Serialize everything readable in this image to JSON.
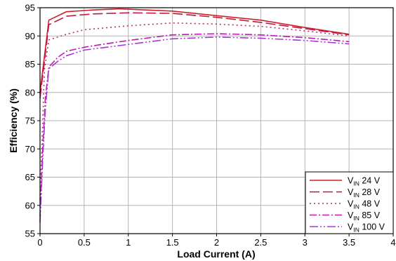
{
  "chart_data": {
    "type": "line",
    "xlabel": "Load Current (A)",
    "ylabel": "Efficiency (%)",
    "xlim": [
      0,
      4
    ],
    "ylim": [
      55,
      95
    ],
    "xticks": [
      0,
      0.5,
      1,
      1.5,
      2,
      2.5,
      3,
      3.5,
      4
    ],
    "xtick_labels": [
      "0",
      "0.5",
      "1",
      "1.5",
      "2",
      "2.5",
      "3",
      "3.5",
      "4"
    ],
    "yticks": [
      55,
      60,
      65,
      70,
      75,
      80,
      85,
      90,
      95
    ],
    "ytick_labels": [
      "55",
      "60",
      "65",
      "70",
      "75",
      "80",
      "85",
      "90",
      "95"
    ],
    "grid": true,
    "legend_position": "bottom-right",
    "series": [
      {
        "name": "V_IN 24 V",
        "label_main": "V",
        "label_sub": "IN",
        "label_rest": " 24 V",
        "color": "#d01f2b",
        "style": "solid",
        "x": [
          0,
          0.1,
          0.3,
          0.6,
          0.9,
          1.2,
          1.5,
          2.0,
          2.5,
          3.0,
          3.5
        ],
        "y": [
          80,
          92.8,
          94.3,
          94.6,
          94.8,
          94.6,
          94.4,
          93.6,
          92.8,
          91.5,
          90.3
        ]
      },
      {
        "name": "V_IN 28 V",
        "label_main": "V",
        "label_sub": "IN",
        "label_rest": " 28 V",
        "color": "#c01840",
        "style": "longdash",
        "x": [
          0,
          0.1,
          0.3,
          0.6,
          1.0,
          1.5,
          2.0,
          2.5,
          3.0,
          3.5
        ],
        "y": [
          79,
          92.0,
          93.5,
          93.9,
          94.1,
          94.0,
          93.3,
          92.4,
          91.3,
          90.2
        ]
      },
      {
        "name": "V_IN 48 V",
        "label_main": "V",
        "label_sub": "IN",
        "label_rest": " 48 V",
        "color": "#c02a78",
        "style": "dotted",
        "x": [
          0,
          0.05,
          0.1,
          0.3,
          0.5,
          1.0,
          1.5,
          2.0,
          2.5,
          3.0,
          3.5
        ],
        "y": [
          61,
          84,
          89.3,
          90.3,
          91.1,
          91.8,
          92.3,
          92.1,
          91.7,
          90.9,
          90.0
        ]
      },
      {
        "name": "V_IN 85 V",
        "label_main": "V",
        "label_sub": "IN",
        "label_rest": " 85 V",
        "color": "#c019b4",
        "style": "dashdot",
        "x": [
          0,
          0.03,
          0.06,
          0.1,
          0.2,
          0.3,
          0.5,
          0.7,
          1.0,
          1.5,
          2.0,
          2.5,
          3.0,
          3.5
        ],
        "y": [
          58,
          70,
          79,
          84.5,
          86.2,
          87.3,
          88.0,
          88.5,
          89.2,
          90.2,
          90.4,
          90.2,
          89.7,
          89.0
        ]
      },
      {
        "name": "V_IN 100 V",
        "label_main": "V",
        "label_sub": "IN",
        "label_rest": " 100 V",
        "color": "#a43ad3",
        "style": "dashdotdot",
        "x": [
          0,
          0.03,
          0.06,
          0.1,
          0.2,
          0.3,
          0.5,
          0.7,
          1.0,
          1.5,
          2.0,
          2.5,
          3.0,
          3.5
        ],
        "y": [
          57,
          68,
          77,
          84.2,
          85.5,
          86.5,
          87.5,
          87.9,
          88.5,
          89.5,
          89.8,
          89.6,
          89.2,
          88.6
        ]
      }
    ]
  }
}
